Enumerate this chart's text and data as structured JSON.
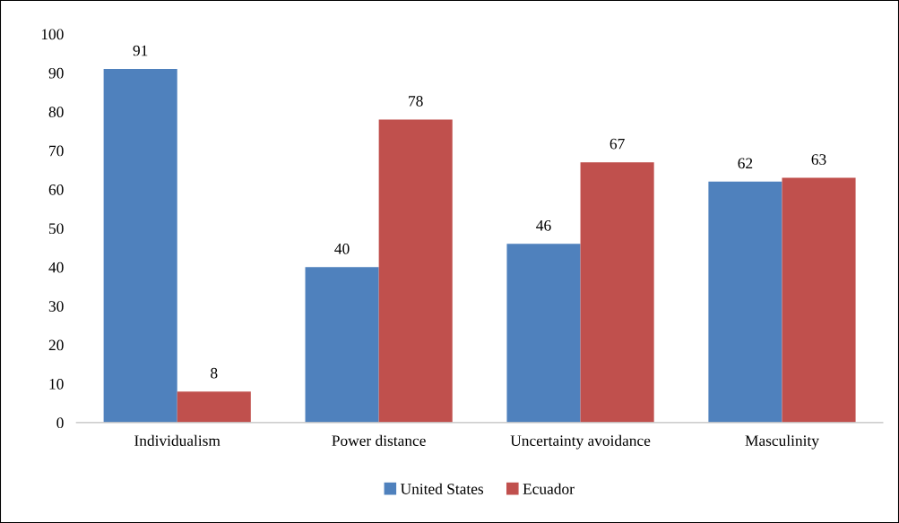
{
  "chart_data": {
    "type": "bar",
    "categories": [
      "Individualism",
      "Power distance",
      "Uncertainty avoidance",
      "Masculinity"
    ],
    "series": [
      {
        "name": "United States",
        "color": "#4f81bd",
        "values": [
          91,
          40,
          46,
          62
        ]
      },
      {
        "name": "Ecuador",
        "color": "#c0504d",
        "values": [
          8,
          78,
          67,
          63
        ]
      }
    ],
    "ylim": [
      0,
      100
    ],
    "yticks": [
      0,
      10,
      20,
      30,
      40,
      50,
      60,
      70,
      80,
      90,
      100
    ],
    "grid": false,
    "legend": "bottom",
    "data_labels": true
  }
}
